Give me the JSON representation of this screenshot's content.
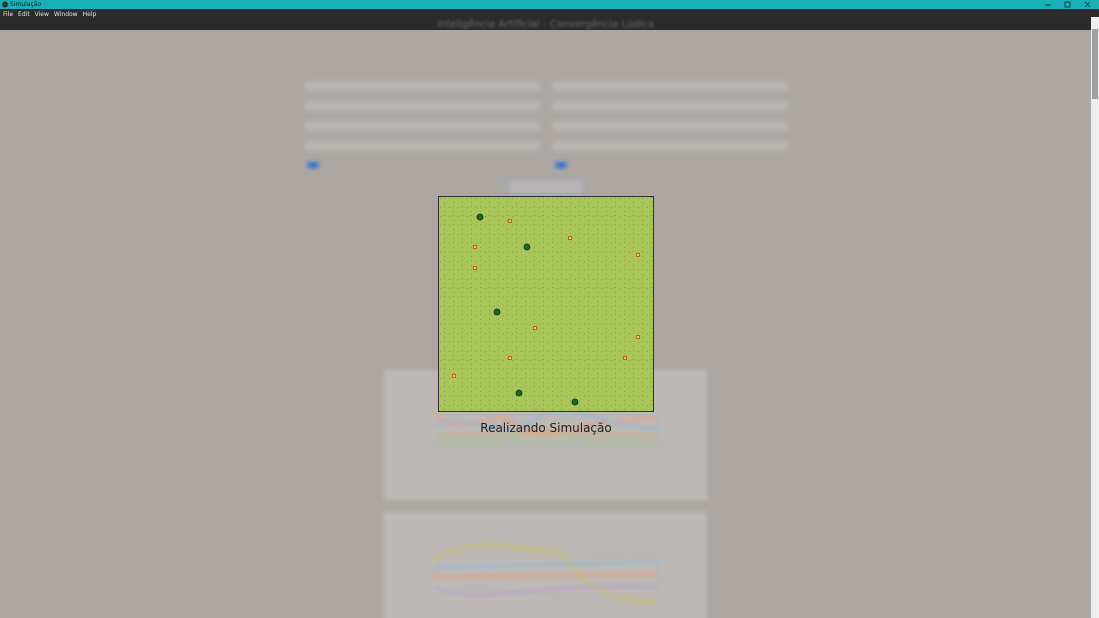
{
  "window": {
    "title": "Simulação"
  },
  "menu": {
    "items": [
      "File",
      "Edit",
      "View",
      "Window",
      "Help"
    ]
  },
  "header": {
    "title": "Inteligência Artificial - Convergência Lúdica"
  },
  "status": {
    "text": "Realizando Simulação"
  }
}
